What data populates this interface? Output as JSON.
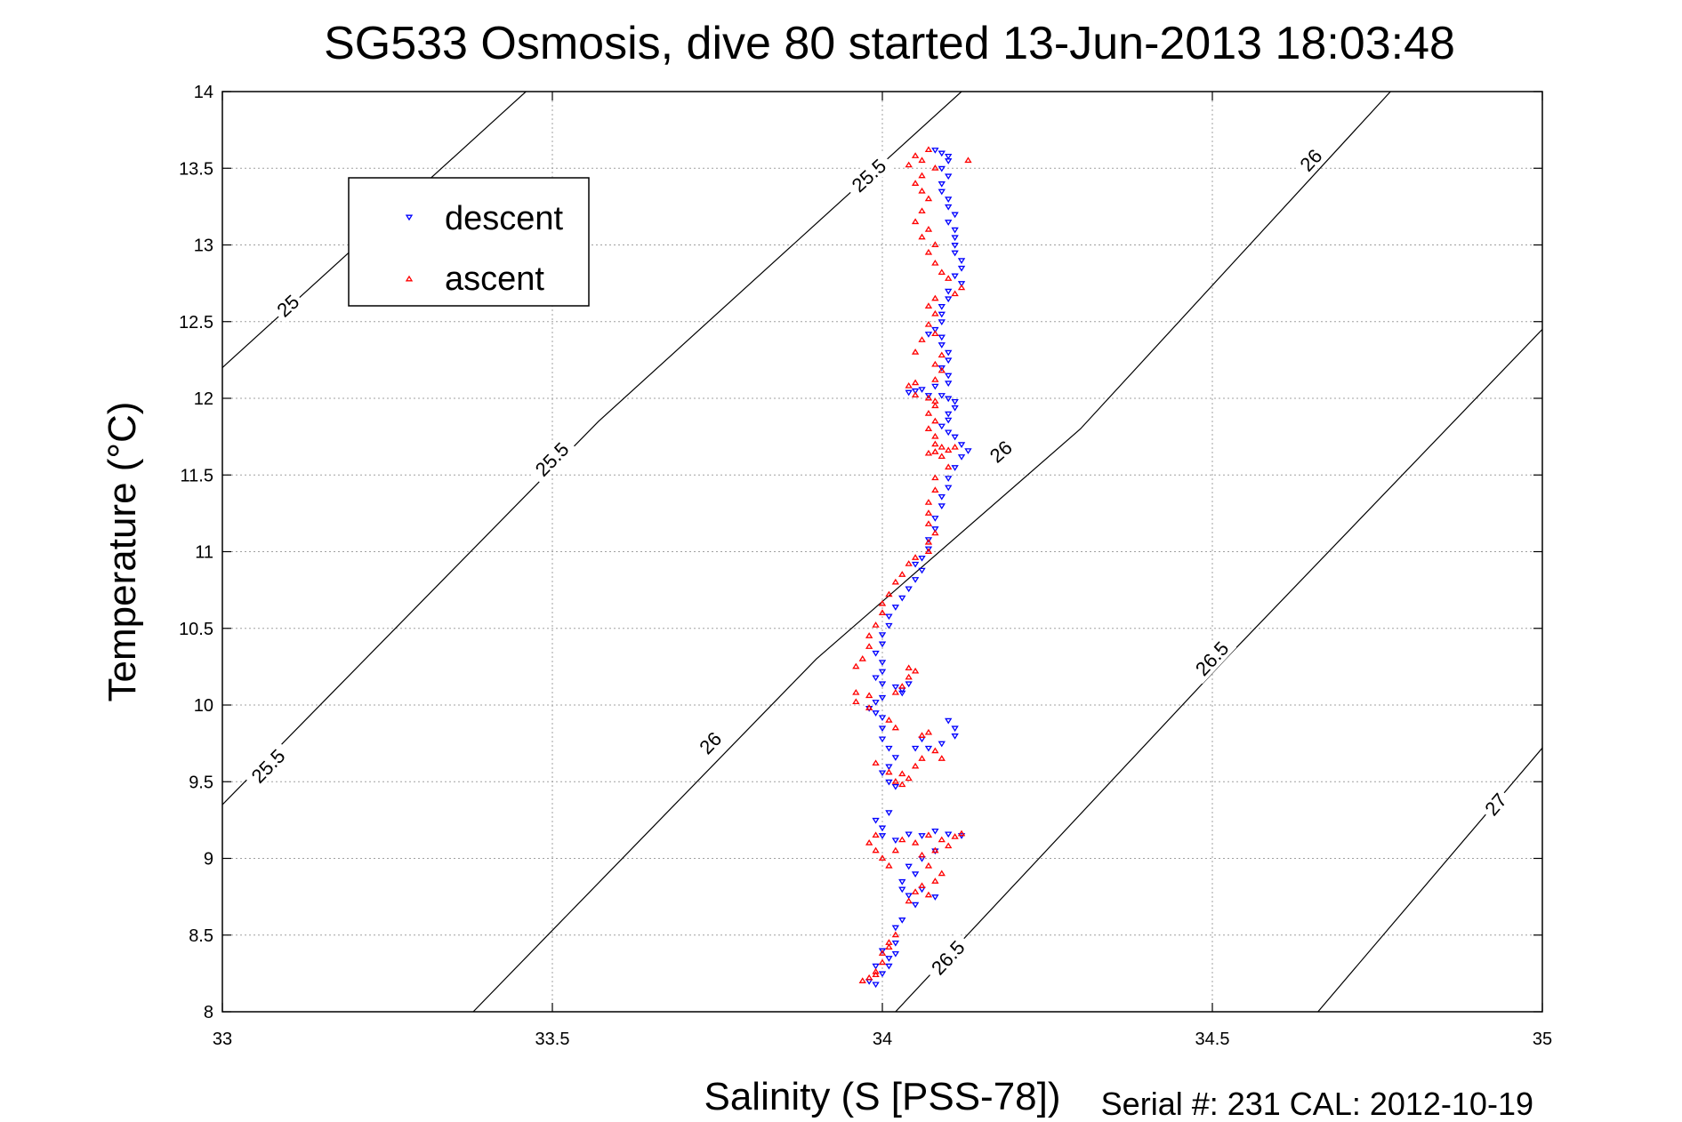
{
  "chart_data": {
    "type": "scatter",
    "title": "SG533 Osmosis, dive 80 started 13-Jun-2013 18:03:48",
    "xlabel": "Salinity (S [PSS-78])",
    "ylabel": "Temperature (°C)",
    "xlim": [
      33,
      35
    ],
    "ylim": [
      8,
      14
    ],
    "xticks": [
      "33",
      "33.5",
      "34",
      "34.5",
      "35"
    ],
    "yticks": [
      "8",
      "8.5",
      "9",
      "9.5",
      "10",
      "10.5",
      "11",
      "11.5",
      "12",
      "12.5",
      "13",
      "13.5",
      "14"
    ],
    "grid": true,
    "legend_position": "top-left",
    "footer": "Serial #: 231  CAL: 2012-10-19",
    "density_contours": [
      {
        "label": "25",
        "points": [
          [
            33.0,
            12.2
          ],
          [
            33.46,
            14.0
          ]
        ],
        "label_at": [
          33.1,
          12.6
        ]
      },
      {
        "label": "25.5",
        "points": [
          [
            33.0,
            9.35
          ],
          [
            33.57,
            11.85
          ],
          [
            34.12,
            14.0
          ]
        ],
        "label_at": [
          33.07,
          9.6
        ]
      },
      {
        "label": "25.5",
        "points": [
          [
            33.0,
            9.35
          ],
          [
            33.57,
            11.85
          ],
          [
            34.12,
            14.0
          ]
        ],
        "label_at": [
          33.5,
          11.6
        ]
      },
      {
        "label": "25.5",
        "points": [
          [
            33.0,
            9.35
          ],
          [
            33.57,
            11.85
          ],
          [
            34.12,
            14.0
          ]
        ],
        "label_at": [
          33.98,
          13.45
        ]
      },
      {
        "label": "26",
        "points": [
          [
            33.38,
            8.0
          ],
          [
            33.9,
            10.3
          ],
          [
            34.3,
            11.8
          ],
          [
            34.77,
            14.0
          ]
        ],
        "label_at": [
          33.74,
          9.75
        ]
      },
      {
        "label": "26",
        "points": [
          [
            33.38,
            8.0
          ],
          [
            33.9,
            10.3
          ],
          [
            34.3,
            11.8
          ],
          [
            34.77,
            14.0
          ]
        ],
        "label_at": [
          34.18,
          11.65
        ]
      },
      {
        "label": "26",
        "points": [
          [
            33.38,
            8.0
          ],
          [
            33.9,
            10.3
          ],
          [
            34.3,
            11.8
          ],
          [
            34.77,
            14.0
          ]
        ],
        "label_at": [
          34.65,
          13.55
        ]
      },
      {
        "label": "26.5",
        "points": [
          [
            34.02,
            8.0
          ],
          [
            34.52,
            10.3
          ],
          [
            35.0,
            12.45
          ]
        ],
        "label_at": [
          34.1,
          8.35
        ]
      },
      {
        "label": "26.5",
        "points": [
          [
            34.02,
            8.0
          ],
          [
            34.52,
            10.3
          ],
          [
            35.0,
            12.45
          ]
        ],
        "label_at": [
          34.5,
          10.3
        ]
      },
      {
        "label": "27",
        "points": [
          [
            34.66,
            8.0
          ],
          [
            35.0,
            9.72
          ]
        ],
        "label_at": [
          34.93,
          9.35
        ]
      }
    ],
    "series": [
      {
        "name": "descent",
        "color": "#0000ff",
        "marker": "down-triangle",
        "points": [
          [
            34.08,
            13.62
          ],
          [
            34.09,
            13.6
          ],
          [
            34.1,
            13.58
          ],
          [
            34.1,
            13.55
          ],
          [
            34.09,
            13.5
          ],
          [
            34.1,
            13.45
          ],
          [
            34.09,
            13.4
          ],
          [
            34.09,
            13.35
          ],
          [
            34.1,
            13.3
          ],
          [
            34.1,
            13.25
          ],
          [
            34.11,
            13.2
          ],
          [
            34.1,
            13.15
          ],
          [
            34.11,
            13.1
          ],
          [
            34.11,
            13.05
          ],
          [
            34.11,
            13.0
          ],
          [
            34.11,
            12.95
          ],
          [
            34.12,
            12.9
          ],
          [
            34.12,
            12.85
          ],
          [
            34.11,
            12.8
          ],
          [
            34.12,
            12.75
          ],
          [
            34.1,
            12.7
          ],
          [
            34.1,
            12.65
          ],
          [
            34.09,
            12.6
          ],
          [
            34.09,
            12.55
          ],
          [
            34.09,
            12.5
          ],
          [
            34.08,
            12.45
          ],
          [
            34.07,
            12.42
          ],
          [
            34.09,
            12.4
          ],
          [
            34.09,
            12.35
          ],
          [
            34.1,
            12.3
          ],
          [
            34.1,
            12.25
          ],
          [
            34.09,
            12.2
          ],
          [
            34.1,
            12.15
          ],
          [
            34.1,
            12.1
          ],
          [
            34.08,
            12.08
          ],
          [
            34.06,
            12.06
          ],
          [
            34.04,
            12.04
          ],
          [
            34.05,
            12.05
          ],
          [
            34.07,
            12.02
          ],
          [
            34.09,
            12.02
          ],
          [
            34.1,
            12.0
          ],
          [
            34.11,
            11.98
          ],
          [
            34.11,
            11.94
          ],
          [
            34.1,
            11.9
          ],
          [
            34.1,
            11.86
          ],
          [
            34.09,
            11.82
          ],
          [
            34.1,
            11.78
          ],
          [
            34.11,
            11.75
          ],
          [
            34.12,
            11.7
          ],
          [
            34.13,
            11.66
          ],
          [
            34.12,
            11.62
          ],
          [
            34.11,
            11.55
          ],
          [
            34.1,
            11.48
          ],
          [
            34.1,
            11.42
          ],
          [
            34.09,
            11.36
          ],
          [
            34.09,
            11.3
          ],
          [
            34.08,
            11.22
          ],
          [
            34.08,
            11.15
          ],
          [
            34.07,
            11.08
          ],
          [
            34.07,
            11.02
          ],
          [
            34.06,
            10.96
          ],
          [
            34.05,
            10.92
          ],
          [
            34.06,
            10.88
          ],
          [
            34.05,
            10.82
          ],
          [
            34.04,
            10.76
          ],
          [
            34.03,
            10.7
          ],
          [
            34.02,
            10.64
          ],
          [
            34.01,
            10.58
          ],
          [
            34.01,
            10.52
          ],
          [
            34.0,
            10.46
          ],
          [
            34.0,
            10.4
          ],
          [
            33.99,
            10.34
          ],
          [
            34.0,
            10.28
          ],
          [
            34.0,
            10.22
          ],
          [
            33.99,
            10.18
          ],
          [
            34.0,
            10.14
          ],
          [
            34.02,
            10.12
          ],
          [
            34.03,
            10.1
          ],
          [
            34.04,
            10.14
          ],
          [
            34.03,
            10.08
          ],
          [
            34.0,
            10.05
          ],
          [
            33.99,
            10.02
          ],
          [
            33.98,
            9.98
          ],
          [
            33.99,
            9.95
          ],
          [
            34.0,
            9.92
          ],
          [
            34.0,
            9.85
          ],
          [
            34.0,
            9.78
          ],
          [
            34.01,
            9.72
          ],
          [
            34.02,
            9.66
          ],
          [
            34.01,
            9.6
          ],
          [
            34.0,
            9.56
          ],
          [
            34.01,
            9.5
          ],
          [
            34.02,
            9.47
          ],
          [
            34.1,
            9.9
          ],
          [
            34.11,
            9.85
          ],
          [
            34.11,
            9.8
          ],
          [
            34.09,
            9.75
          ],
          [
            34.07,
            9.72
          ],
          [
            34.05,
            9.72
          ],
          [
            34.06,
            9.78
          ],
          [
            34.01,
            9.3
          ],
          [
            33.99,
            9.25
          ],
          [
            34.0,
            9.2
          ],
          [
            34.0,
            9.15
          ],
          [
            34.02,
            9.12
          ],
          [
            34.04,
            9.16
          ],
          [
            34.06,
            9.15
          ],
          [
            34.08,
            9.18
          ],
          [
            34.1,
            9.16
          ],
          [
            34.12,
            9.15
          ],
          [
            34.08,
            9.05
          ],
          [
            34.06,
            9.0
          ],
          [
            34.04,
            8.95
          ],
          [
            34.05,
            8.9
          ],
          [
            34.03,
            8.85
          ],
          [
            34.03,
            8.8
          ],
          [
            34.04,
            8.76
          ],
          [
            34.06,
            8.8
          ],
          [
            34.08,
            8.75
          ],
          [
            34.05,
            8.7
          ],
          [
            34.03,
            8.6
          ],
          [
            34.02,
            8.55
          ],
          [
            34.02,
            8.45
          ],
          [
            34.0,
            8.4
          ],
          [
            34.01,
            8.35
          ],
          [
            33.99,
            8.3
          ],
          [
            34.0,
            8.25
          ],
          [
            33.98,
            8.2
          ],
          [
            33.99,
            8.18
          ],
          [
            34.01,
            8.3
          ],
          [
            34.02,
            8.38
          ]
        ]
      },
      {
        "name": "ascent",
        "color": "#ff0000",
        "marker": "up-triangle",
        "points": [
          [
            34.07,
            13.62
          ],
          [
            34.05,
            13.58
          ],
          [
            34.06,
            13.55
          ],
          [
            34.04,
            13.52
          ],
          [
            34.13,
            13.55
          ],
          [
            34.08,
            13.5
          ],
          [
            34.06,
            13.45
          ],
          [
            34.05,
            13.4
          ],
          [
            34.06,
            13.35
          ],
          [
            34.07,
            13.3
          ],
          [
            34.06,
            13.22
          ],
          [
            34.05,
            13.15
          ],
          [
            34.07,
            13.1
          ],
          [
            34.06,
            13.05
          ],
          [
            34.08,
            13.0
          ],
          [
            34.07,
            12.95
          ],
          [
            34.08,
            12.88
          ],
          [
            34.09,
            12.82
          ],
          [
            34.1,
            12.78
          ],
          [
            34.12,
            12.72
          ],
          [
            34.11,
            12.68
          ],
          [
            34.08,
            12.65
          ],
          [
            34.07,
            12.6
          ],
          [
            34.08,
            12.55
          ],
          [
            34.07,
            12.48
          ],
          [
            34.08,
            12.42
          ],
          [
            34.06,
            12.38
          ],
          [
            34.05,
            12.3
          ],
          [
            34.09,
            12.28
          ],
          [
            34.08,
            12.22
          ],
          [
            34.09,
            12.18
          ],
          [
            34.08,
            12.12
          ],
          [
            34.05,
            12.1
          ],
          [
            34.04,
            12.08
          ],
          [
            34.05,
            12.02
          ],
          [
            34.07,
            12.0
          ],
          [
            34.08,
            11.98
          ],
          [
            34.08,
            11.95
          ],
          [
            34.07,
            11.9
          ],
          [
            34.08,
            11.85
          ],
          [
            34.07,
            11.8
          ],
          [
            34.08,
            11.75
          ],
          [
            34.08,
            11.7
          ],
          [
            34.09,
            11.68
          ],
          [
            34.11,
            11.68
          ],
          [
            34.1,
            11.66
          ],
          [
            34.08,
            11.65
          ],
          [
            34.07,
            11.64
          ],
          [
            34.09,
            11.62
          ],
          [
            34.1,
            11.55
          ],
          [
            34.08,
            11.48
          ],
          [
            34.08,
            11.4
          ],
          [
            34.07,
            11.32
          ],
          [
            34.07,
            11.25
          ],
          [
            34.07,
            11.18
          ],
          [
            34.08,
            11.12
          ],
          [
            34.07,
            11.06
          ],
          [
            34.07,
            11.0
          ],
          [
            34.05,
            10.96
          ],
          [
            34.04,
            10.92
          ],
          [
            34.03,
            10.85
          ],
          [
            34.02,
            10.8
          ],
          [
            34.01,
            10.72
          ],
          [
            34.0,
            10.66
          ],
          [
            34.0,
            10.6
          ],
          [
            33.99,
            10.52
          ],
          [
            33.98,
            10.45
          ],
          [
            33.98,
            10.38
          ],
          [
            33.97,
            10.3
          ],
          [
            33.96,
            10.25
          ],
          [
            34.04,
            10.24
          ],
          [
            34.05,
            10.22
          ],
          [
            34.04,
            10.18
          ],
          [
            34.03,
            10.12
          ],
          [
            34.02,
            10.08
          ],
          [
            33.98,
            10.06
          ],
          [
            33.96,
            10.08
          ],
          [
            33.96,
            10.02
          ],
          [
            33.98,
            9.98
          ],
          [
            34.01,
            9.9
          ],
          [
            34.02,
            9.85
          ],
          [
            34.06,
            9.8
          ],
          [
            34.07,
            9.82
          ],
          [
            34.09,
            9.65
          ],
          [
            34.08,
            9.7
          ],
          [
            34.06,
            9.65
          ],
          [
            34.05,
            9.6
          ],
          [
            34.03,
            9.55
          ],
          [
            34.02,
            9.5
          ],
          [
            34.01,
            9.56
          ],
          [
            33.99,
            9.62
          ],
          [
            34.03,
            9.48
          ],
          [
            34.04,
            9.52
          ],
          [
            33.99,
            9.15
          ],
          [
            33.98,
            9.1
          ],
          [
            33.99,
            9.05
          ],
          [
            34.0,
            9.0
          ],
          [
            34.01,
            8.95
          ],
          [
            34.02,
            9.05
          ],
          [
            34.03,
            9.12
          ],
          [
            34.05,
            9.1
          ],
          [
            34.07,
            9.15
          ],
          [
            34.09,
            9.12
          ],
          [
            34.11,
            9.14
          ],
          [
            34.12,
            9.16
          ],
          [
            34.1,
            9.08
          ],
          [
            34.08,
            9.05
          ],
          [
            34.06,
            9.02
          ],
          [
            34.07,
            8.95
          ],
          [
            34.09,
            8.9
          ],
          [
            34.08,
            8.85
          ],
          [
            34.06,
            8.82
          ],
          [
            34.05,
            8.78
          ],
          [
            34.07,
            8.76
          ],
          [
            34.04,
            8.72
          ],
          [
            34.02,
            8.5
          ],
          [
            34.01,
            8.45
          ],
          [
            34.0,
            8.38
          ],
          [
            34.0,
            8.32
          ],
          [
            33.99,
            8.26
          ],
          [
            33.98,
            8.22
          ],
          [
            33.97,
            8.2
          ],
          [
            33.99,
            8.24
          ],
          [
            34.01,
            8.42
          ]
        ]
      }
    ]
  }
}
